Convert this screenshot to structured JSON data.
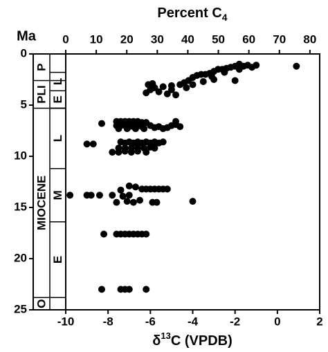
{
  "chart_data": {
    "type": "scatter",
    "title": {
      "text": "Percent C",
      "sub": "4"
    },
    "y_label": "Ma",
    "x_label": {
      "text": "δ",
      "sup": "13",
      "rest": "C (VPDB)"
    },
    "xlim": [
      -10,
      2
    ],
    "xticks": [
      -10,
      -8,
      -6,
      -4,
      -2,
      0,
      2
    ],
    "x2lim": [
      0,
      83.2
    ],
    "x2ticks": [
      0,
      10,
      20,
      30,
      40,
      50,
      60,
      70,
      80
    ],
    "ylim": [
      0,
      25
    ],
    "yticks": [
      0,
      5,
      10,
      15,
      20,
      25
    ],
    "y_inverted": true,
    "color": "#000000",
    "stratigraphy": {
      "epochs": [
        {
          "label": "P",
          "top": 0,
          "base": 2.6
        },
        {
          "label": "PLI",
          "top": 2.6,
          "base": 5.3
        },
        {
          "label": "MIOCENE",
          "top": 5.3,
          "base": 23.8
        },
        {
          "label": "O",
          "top": 23.8,
          "base": 25
        }
      ],
      "ages": [
        {
          "label": "L",
          "top": 1.8,
          "base": 3.6
        },
        {
          "label": "E",
          "top": 3.6,
          "base": 5.3
        },
        {
          "label": "L",
          "top": 5.3,
          "base": 11.2
        },
        {
          "label": "M",
          "top": 11.2,
          "base": 16.4
        },
        {
          "label": "E",
          "top": 16.4,
          "base": 23.8
        }
      ]
    },
    "x": [
      0.9,
      -1.0,
      -1.2,
      -1.4,
      -1.6,
      -1.8,
      -2.0,
      -2.2,
      -2.4,
      -2.6,
      -2.8,
      -3.0,
      -3.2,
      -3.4,
      -3.6,
      -3.8,
      -4.0,
      -4.2,
      -4.4,
      -4.6,
      -5.0,
      -5.4,
      -5.8,
      -6.0,
      -6.2,
      -5.6,
      -5.2,
      -4.8,
      -4.0,
      -3.5,
      -3.0,
      -2.0,
      -1.8,
      -2.5,
      -3.1,
      -5.0,
      -4.3,
      -5.9,
      -6.1,
      -8.3,
      -7.6,
      -7.4,
      -7.2,
      -7.0,
      -6.8,
      -6.6,
      -6.4,
      -6.2,
      -7.6,
      -7.4,
      -7.2,
      -7.0,
      -6.8,
      -6.6,
      -6.4,
      -6.0,
      -5.6,
      -5.2,
      -5.0,
      -4.8,
      -4.6,
      -4.8,
      -7.5,
      -7.1,
      -6.7,
      -6.3,
      -5.8,
      -5.4,
      -9.0,
      -8.7,
      -7.4,
      -7.2,
      -7.0,
      -6.8,
      -6.6,
      -6.4,
      -6.2,
      -6.0,
      -5.8,
      -5.6,
      -5.4,
      -7.5,
      -7.2,
      -6.9,
      -6.6,
      -6.3,
      -6.0,
      -5.8,
      -7.8,
      -7.5,
      -7.2,
      -6.9,
      -6.6,
      -6.2,
      -7.0,
      -6.7,
      -6.4,
      -6.2,
      -6.0,
      -5.8,
      -5.6,
      -5.4,
      -5.2,
      -7.4,
      -9.8,
      -9.0,
      -8.8,
      -8.4,
      -7.8,
      -7.3,
      -7.0,
      -7.6,
      -7.1,
      -6.8,
      -6.5,
      -5.9,
      -5.7,
      -4.0,
      -8.2,
      -7.6,
      -7.4,
      -7.2,
      -7.0,
      -6.8,
      -6.6,
      -6.4,
      -6.2,
      -8.3,
      -7.4,
      -7.2,
      -7.0,
      -6.2
    ],
    "values": [
      1.2,
      1.1,
      1.3,
      1.1,
      1.2,
      1.0,
      1.2,
      1.3,
      1.4,
      1.5,
      1.5,
      1.7,
      1.9,
      2.0,
      2.0,
      2.1,
      2.3,
      2.6,
      2.8,
      3.0,
      3.1,
      3.2,
      3.3,
      3.5,
      3.8,
      3.7,
      3.9,
      4.0,
      3.0,
      2.7,
      2.5,
      2.6,
      1.5,
      1.8,
      2.2,
      3.5,
      3.3,
      2.9,
      3.0,
      6.8,
      6.6,
      6.6,
      6.6,
      6.6,
      6.6,
      6.6,
      6.7,
      6.7,
      7.0,
      7.0,
      7.0,
      7.1,
      7.1,
      7.0,
      7.1,
      7.0,
      7.1,
      7.2,
      7.0,
      6.9,
      7.1,
      6.6,
      7.3,
      7.3,
      7.3,
      7.3,
      7.2,
      7.3,
      8.8,
      8.8,
      8.6,
      8.7,
      8.6,
      8.7,
      8.6,
      8.7,
      8.6,
      8.7,
      8.6,
      8.7,
      8.6,
      9.2,
      9.2,
      9.2,
      9.2,
      9.2,
      9.1,
      9.2,
      9.6,
      9.6,
      9.5,
      9.6,
      9.5,
      9.6,
      12.9,
      13.0,
      13.2,
      13.2,
      13.2,
      13.2,
      13.2,
      13.2,
      13.2,
      13.3,
      13.8,
      13.8,
      13.8,
      13.8,
      13.8,
      13.9,
      13.8,
      14.5,
      14.4,
      14.5,
      14.3,
      14.5,
      14.5,
      14.4,
      17.6,
      17.6,
      17.6,
      17.6,
      17.6,
      17.6,
      17.6,
      17.6,
      17.6,
      23.0,
      23.0,
      23.0,
      23.0,
      23.0
    ]
  }
}
